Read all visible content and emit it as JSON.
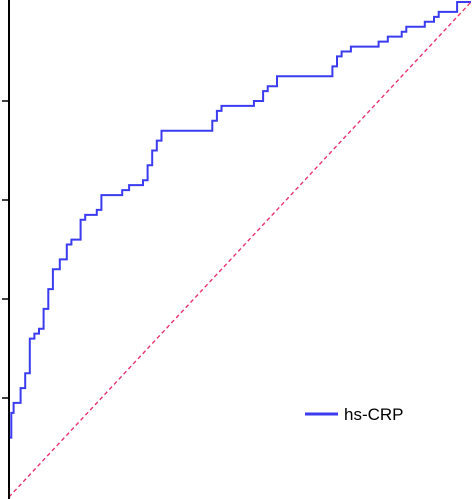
{
  "chart_data": {
    "type": "line",
    "title": "",
    "xlabel": "",
    "ylabel": "",
    "xlim": [
      0,
      1
    ],
    "ylim": [
      0,
      1
    ],
    "grid": false,
    "legend_position": "bottom-right",
    "series": [
      {
        "name": "hs-CRP",
        "color": "#3b3bf0",
        "line_style": "solid",
        "step": true,
        "x": [
          0.0,
          0.005,
          0.005,
          0.01,
          0.01,
          0.025,
          0.025,
          0.035,
          0.035,
          0.045,
          0.045,
          0.055,
          0.055,
          0.065,
          0.065,
          0.075,
          0.075,
          0.085,
          0.085,
          0.095,
          0.095,
          0.11,
          0.11,
          0.125,
          0.125,
          0.135,
          0.135,
          0.145,
          0.145,
          0.155,
          0.155,
          0.165,
          0.165,
          0.175,
          0.175,
          0.19,
          0.19,
          0.2,
          0.2,
          0.245,
          0.245,
          0.26,
          0.26,
          0.29,
          0.29,
          0.3,
          0.3,
          0.31,
          0.31,
          0.32,
          0.32,
          0.33,
          0.33,
          0.34,
          0.34,
          0.44,
          0.44,
          0.45,
          0.45,
          0.46,
          0.46,
          0.53,
          0.53,
          0.55,
          0.55,
          0.56,
          0.56,
          0.58,
          0.58,
          0.7,
          0.7,
          0.71,
          0.71,
          0.72,
          0.72,
          0.74,
          0.74,
          0.75,
          0.75,
          0.8,
          0.8,
          0.82,
          0.82,
          0.85,
          0.85,
          0.86,
          0.86,
          0.9,
          0.9,
          0.92,
          0.92,
          0.93,
          0.93,
          0.97,
          0.97,
          1.0
        ],
        "y": [
          0.12,
          0.12,
          0.17,
          0.17,
          0.19,
          0.19,
          0.22,
          0.22,
          0.25,
          0.25,
          0.32,
          0.32,
          0.33,
          0.33,
          0.34,
          0.34,
          0.38,
          0.38,
          0.42,
          0.42,
          0.46,
          0.46,
          0.48,
          0.48,
          0.51,
          0.51,
          0.52,
          0.52,
          0.52,
          0.52,
          0.56,
          0.56,
          0.57,
          0.57,
          0.57,
          0.57,
          0.58,
          0.58,
          0.61,
          0.61,
          0.62,
          0.62,
          0.63,
          0.63,
          0.64,
          0.64,
          0.67,
          0.67,
          0.7,
          0.7,
          0.72,
          0.72,
          0.74,
          0.74,
          0.74,
          0.74,
          0.76,
          0.76,
          0.78,
          0.78,
          0.79,
          0.79,
          0.8,
          0.8,
          0.82,
          0.82,
          0.83,
          0.83,
          0.85,
          0.85,
          0.87,
          0.87,
          0.89,
          0.89,
          0.9,
          0.9,
          0.91,
          0.91,
          0.91,
          0.91,
          0.92,
          0.92,
          0.93,
          0.93,
          0.94,
          0.94,
          0.95,
          0.95,
          0.96,
          0.96,
          0.97,
          0.97,
          0.98,
          0.98,
          1.0,
          1.0
        ]
      },
      {
        "name": "",
        "color": "#e8336d",
        "line_style": "dashed",
        "step": false,
        "x": [
          0,
          1
        ],
        "y": [
          0,
          1
        ]
      }
    ],
    "legend": [
      {
        "label": "hs-CRP",
        "color": "#3b3bf0"
      }
    ],
    "y_ticks": [
      0.2,
      0.4,
      0.6,
      0.8
    ]
  }
}
